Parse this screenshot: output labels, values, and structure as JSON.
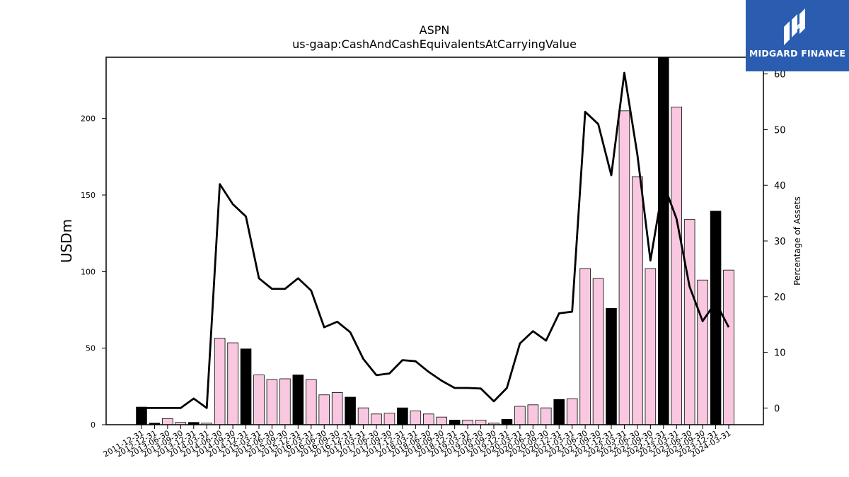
{
  "brand": {
    "name": "MIDGARD FINANCE",
    "logo_icon": "midgard-logo-icon",
    "bg_color": "#2a5db0"
  },
  "chart_data": {
    "type": "bar",
    "title": "ASPN",
    "subtitle": "us-gaap:CashAndCashEquivalentsAtCarryingValue",
    "ylabel": "USDm",
    "y2label": "Percentage of Assets",
    "ylim": [
      0,
      240
    ],
    "y2lim": [
      -3,
      63
    ],
    "yticks": [
      0,
      50,
      100,
      150,
      200
    ],
    "y2ticks": [
      0,
      10,
      20,
      30,
      40,
      50,
      60
    ],
    "grid": false,
    "colors": {
      "q4_bar": "#000000",
      "other_bar": "#f9c8e0",
      "line": "#000000"
    },
    "categories": [
      "2011-12-31",
      "2012-12-31",
      "2013-06-30",
      "2013-09-30",
      "2013-12-31",
      "2014-03-31",
      "2014-06-30",
      "2014-09-30",
      "2014-12-31",
      "2015-03-31",
      "2015-06-30",
      "2015-09-30",
      "2015-12-31",
      "2016-03-31",
      "2016-06-30",
      "2016-09-30",
      "2016-12-31",
      "2017-03-31",
      "2017-06-30",
      "2017-09-30",
      "2017-12-31",
      "2018-03-31",
      "2018-06-30",
      "2018-09-30",
      "2018-12-31",
      "2019-03-31",
      "2019-06-30",
      "2019-09-30",
      "2019-12-31",
      "2020-03-31",
      "2020-06-30",
      "2020-09-30",
      "2020-12-31",
      "2021-03-31",
      "2021-06-30",
      "2021-09-30",
      "2021-12-31",
      "2022-03-31",
      "2022-06-30",
      "2022-09-30",
      "2022-12-31",
      "2023-03-31",
      "2023-06-30",
      "2023-09-30",
      "2023-12-31",
      "2024-03-31"
    ],
    "series": [
      {
        "kind": "bar",
        "axis": "left",
        "values": [
          11.5,
          1,
          4,
          1.5,
          1.5,
          1,
          56.5,
          53.5,
          49.5,
          32.5,
          29.5,
          30,
          32.5,
          29.5,
          19.5,
          21,
          18,
          11,
          7,
          7.5,
          11,
          9,
          7,
          5,
          3,
          3,
          3,
          1,
          3.5,
          12,
          13,
          11,
          16.5,
          17,
          102,
          95.5,
          76,
          205,
          162,
          102,
          250,
          207.5,
          134,
          94.5,
          139.5,
          101
        ]
      },
      {
        "kind": "line",
        "axis": "right",
        "values": [
          0,
          0,
          0,
          0,
          1.7,
          0,
          40.2,
          36.6,
          34.4,
          23.3,
          21.4,
          21.4,
          23.3,
          21.1,
          14.5,
          15.5,
          13.6,
          8.8,
          5.9,
          6.2,
          8.6,
          8.4,
          6.5,
          4.9,
          3.6,
          3.6,
          3.5,
          1.2,
          3.6,
          11.6,
          13.8,
          12.1,
          17,
          17.3,
          53.2,
          51,
          41.8,
          60.2,
          45.5,
          26.5,
          40.3,
          34,
          21.8,
          15.6,
          19,
          14.5
        ]
      }
    ]
  }
}
